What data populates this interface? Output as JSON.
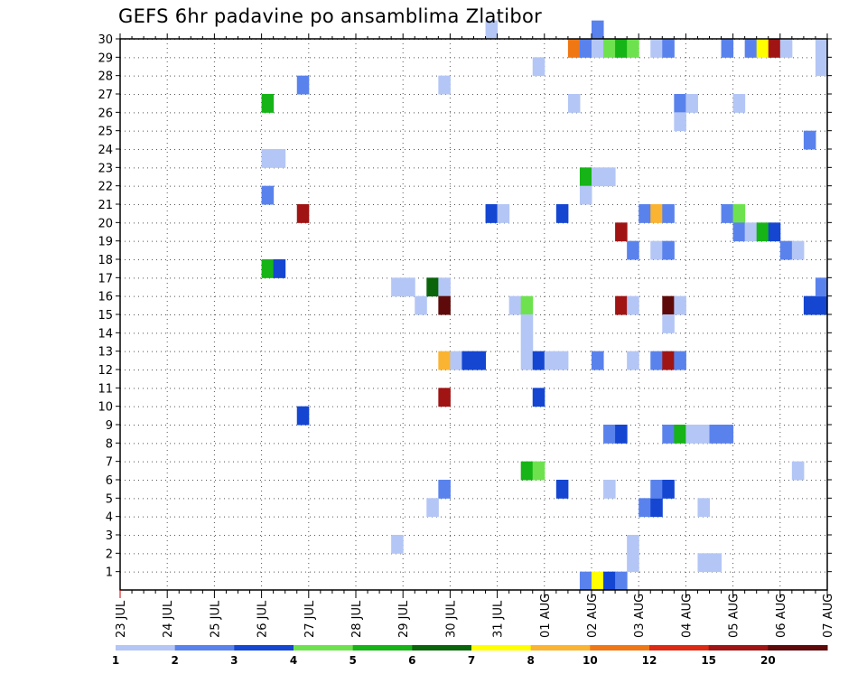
{
  "chart_data": {
    "type": "heatmap",
    "title": "GEFS 6hr padavine po ansamblima Zlatibor",
    "x_tick_labels": [
      "23 JUL",
      "24 JUL",
      "25 JUL",
      "26 JUL",
      "27 JUL",
      "28 JUL",
      "29 JUL",
      "30 JUL",
      "31 JUL",
      "01 AUG",
      "02 AUG",
      "03 AUG",
      "04 AUG",
      "05 AUG",
      "06 AUG",
      "07 AUG"
    ],
    "y_tick_labels": [
      "1",
      "2",
      "3",
      "4",
      "5",
      "6",
      "7",
      "8",
      "9",
      "10",
      "11",
      "12",
      "13",
      "14",
      "15",
      "16",
      "17",
      "18",
      "19",
      "20",
      "21",
      "22",
      "23",
      "24",
      "25",
      "26",
      "27",
      "28",
      "29",
      "30"
    ],
    "x_unit": "6-hour step from 23 JUL 00Z",
    "xlim": [
      0,
      60
    ],
    "ylim": [
      0,
      30
    ],
    "grid": true,
    "color_scale": {
      "labels": [
        "1",
        "2",
        "3",
        "4",
        "5",
        "6",
        "7",
        "8",
        "10",
        "12",
        "15",
        "20"
      ],
      "colors": [
        "#b4c6f5",
        "#5a82ec",
        "#1446d2",
        "#6ee24e",
        "#16b416",
        "#0a640a",
        "#ffff00",
        "#fab432",
        "#f07814",
        "#dc2a14",
        "#a01414",
        "#5f0a0a"
      ]
    },
    "cells": [
      {
        "x": 12,
        "y": 26,
        "value": 5
      },
      {
        "x": 12,
        "y": 23,
        "value": 1
      },
      {
        "x": 13,
        "y": 23,
        "value": 1
      },
      {
        "x": 12,
        "y": 21,
        "value": 2
      },
      {
        "x": 12,
        "y": 17,
        "value": 5
      },
      {
        "x": 13,
        "y": 17,
        "value": 3
      },
      {
        "x": 15,
        "y": 27,
        "value": 2
      },
      {
        "x": 15,
        "y": 20,
        "value": 15
      },
      {
        "x": 15,
        "y": 9,
        "value": 3
      },
      {
        "x": 23,
        "y": 16,
        "value": 1
      },
      {
        "x": 24,
        "y": 16,
        "value": 1
      },
      {
        "x": 23,
        "y": 2,
        "value": 1
      },
      {
        "x": 25,
        "y": 15,
        "value": 1
      },
      {
        "x": 26,
        "y": 16,
        "value": 6
      },
      {
        "x": 27,
        "y": 16,
        "value": 1
      },
      {
        "x": 27,
        "y": 15,
        "value": 20
      },
      {
        "x": 27,
        "y": 27,
        "value": 1
      },
      {
        "x": 27,
        "y": 12,
        "value": 8
      },
      {
        "x": 28,
        "y": 12,
        "value": 1
      },
      {
        "x": 27,
        "y": 10,
        "value": 15
      },
      {
        "x": 27,
        "y": 5,
        "value": 2
      },
      {
        "x": 26,
        "y": 4,
        "value": 1
      },
      {
        "x": 29,
        "y": 12,
        "value": 3
      },
      {
        "x": 30,
        "y": 12,
        "value": 3
      },
      {
        "x": 31,
        "y": 30,
        "value": 1
      },
      {
        "x": 31,
        "y": 20,
        "value": 3
      },
      {
        "x": 32,
        "y": 20,
        "value": 1
      },
      {
        "x": 33,
        "y": 15,
        "value": 1
      },
      {
        "x": 34,
        "y": 15,
        "value": 4
      },
      {
        "x": 34,
        "y": 14,
        "value": 1
      },
      {
        "x": 34,
        "y": 13,
        "value": 1
      },
      {
        "x": 34,
        "y": 12,
        "value": 1
      },
      {
        "x": 35,
        "y": 12,
        "value": 3
      },
      {
        "x": 36,
        "y": 12,
        "value": 1
      },
      {
        "x": 37,
        "y": 12,
        "value": 1
      },
      {
        "x": 35,
        "y": 10,
        "value": 3
      },
      {
        "x": 35,
        "y": 28,
        "value": 1
      },
      {
        "x": 34,
        "y": 6,
        "value": 5
      },
      {
        "x": 35,
        "y": 6,
        "value": 4
      },
      {
        "x": 37,
        "y": 20,
        "value": 3
      },
      {
        "x": 37,
        "y": 5,
        "value": 3
      },
      {
        "x": 38,
        "y": 26,
        "value": 1
      },
      {
        "x": 38,
        "y": 29,
        "value": 10
      },
      {
        "x": 39,
        "y": 29,
        "value": 2
      },
      {
        "x": 40,
        "y": 29,
        "value": 1
      },
      {
        "x": 40,
        "y": 30,
        "value": 2
      },
      {
        "x": 41,
        "y": 29,
        "value": 4
      },
      {
        "x": 42,
        "y": 29,
        "value": 5
      },
      {
        "x": 43,
        "y": 29,
        "value": 4
      },
      {
        "x": 39,
        "y": 22,
        "value": 5
      },
      {
        "x": 40,
        "y": 22,
        "value": 1
      },
      {
        "x": 41,
        "y": 22,
        "value": 1
      },
      {
        "x": 39,
        "y": 21,
        "value": 1
      },
      {
        "x": 40,
        "y": 12,
        "value": 2
      },
      {
        "x": 41,
        "y": 5,
        "value": 1
      },
      {
        "x": 41,
        "y": 8,
        "value": 2
      },
      {
        "x": 42,
        "y": 8,
        "value": 3
      },
      {
        "x": 39,
        "y": 0,
        "value": 2
      },
      {
        "x": 40,
        "y": 0,
        "value": 7
      },
      {
        "x": 41,
        "y": 0,
        "value": 3
      },
      {
        "x": 42,
        "y": 0,
        "value": 2
      },
      {
        "x": 42,
        "y": 19,
        "value": 15
      },
      {
        "x": 42,
        "y": 15,
        "value": 15
      },
      {
        "x": 43,
        "y": 15,
        "value": 1
      },
      {
        "x": 43,
        "y": 18,
        "value": 2
      },
      {
        "x": 43,
        "y": 12,
        "value": 1
      },
      {
        "x": 43,
        "y": 2,
        "value": 1
      },
      {
        "x": 43,
        "y": 1,
        "value": 1
      },
      {
        "x": 44,
        "y": 20,
        "value": 2
      },
      {
        "x": 45,
        "y": 20,
        "value": 8
      },
      {
        "x": 46,
        "y": 20,
        "value": 2
      },
      {
        "x": 44,
        "y": 4,
        "value": 2
      },
      {
        "x": 45,
        "y": 4,
        "value": 3
      },
      {
        "x": 45,
        "y": 5,
        "value": 2
      },
      {
        "x": 46,
        "y": 5,
        "value": 3
      },
      {
        "x": 45,
        "y": 29,
        "value": 1
      },
      {
        "x": 46,
        "y": 29,
        "value": 2
      },
      {
        "x": 45,
        "y": 18,
        "value": 1
      },
      {
        "x": 46,
        "y": 18,
        "value": 2
      },
      {
        "x": 45,
        "y": 12,
        "value": 2
      },
      {
        "x": 46,
        "y": 12,
        "value": 15
      },
      {
        "x": 47,
        "y": 12,
        "value": 2
      },
      {
        "x": 46,
        "y": 15,
        "value": 20
      },
      {
        "x": 47,
        "y": 15,
        "value": 1
      },
      {
        "x": 46,
        "y": 14,
        "value": 1
      },
      {
        "x": 46,
        "y": 8,
        "value": 2
      },
      {
        "x": 47,
        "y": 8,
        "value": 5
      },
      {
        "x": 47,
        "y": 26,
        "value": 2
      },
      {
        "x": 48,
        "y": 26,
        "value": 1
      },
      {
        "x": 47,
        "y": 25,
        "value": 1
      },
      {
        "x": 48,
        "y": 8,
        "value": 1
      },
      {
        "x": 49,
        "y": 8,
        "value": 1
      },
      {
        "x": 50,
        "y": 8,
        "value": 2
      },
      {
        "x": 51,
        "y": 8,
        "value": 2
      },
      {
        "x": 49,
        "y": 4,
        "value": 1
      },
      {
        "x": 49,
        "y": 1,
        "value": 1
      },
      {
        "x": 50,
        "y": 1,
        "value": 1
      },
      {
        "x": 51,
        "y": 29,
        "value": 2
      },
      {
        "x": 51,
        "y": 20,
        "value": 2
      },
      {
        "x": 52,
        "y": 20,
        "value": 4
      },
      {
        "x": 52,
        "y": 19,
        "value": 2
      },
      {
        "x": 53,
        "y": 19,
        "value": 1
      },
      {
        "x": 52,
        "y": 26,
        "value": 1
      },
      {
        "x": 53,
        "y": 29,
        "value": 2
      },
      {
        "x": 54,
        "y": 29,
        "value": 7
      },
      {
        "x": 55,
        "y": 29,
        "value": 15
      },
      {
        "x": 56,
        "y": 29,
        "value": 1
      },
      {
        "x": 54,
        "y": 19,
        "value": 5
      },
      {
        "x": 55,
        "y": 19,
        "value": 3
      },
      {
        "x": 56,
        "y": 18,
        "value": 2
      },
      {
        "x": 57,
        "y": 18,
        "value": 1
      },
      {
        "x": 57,
        "y": 6,
        "value": 1
      },
      {
        "x": 58,
        "y": 24,
        "value": 2
      },
      {
        "x": 58,
        "y": 15,
        "value": 3
      },
      {
        "x": 59,
        "y": 15,
        "value": 3
      },
      {
        "x": 59,
        "y": 16,
        "value": 2
      },
      {
        "x": 59,
        "y": 29,
        "value": 1
      },
      {
        "x": 59,
        "y": 28,
        "value": 1
      }
    ]
  }
}
